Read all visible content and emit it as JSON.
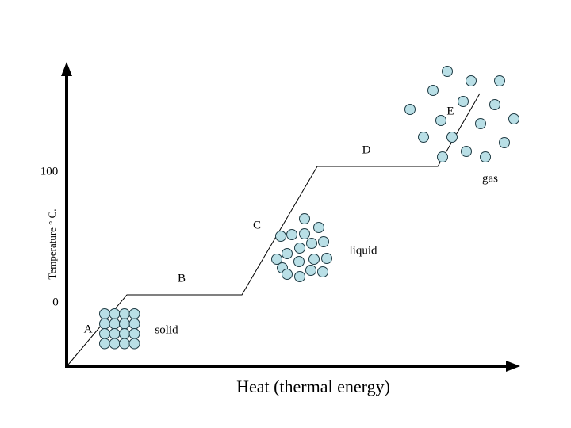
{
  "axes": {
    "y_label": "Temperature ° C.",
    "x_label": "Heat (thermal energy)",
    "ticks": [
      "100",
      "0"
    ]
  },
  "points": [
    "A",
    "B",
    "C",
    "D",
    "E"
  ],
  "phases": [
    "solid",
    "liquid",
    "gas"
  ]
}
